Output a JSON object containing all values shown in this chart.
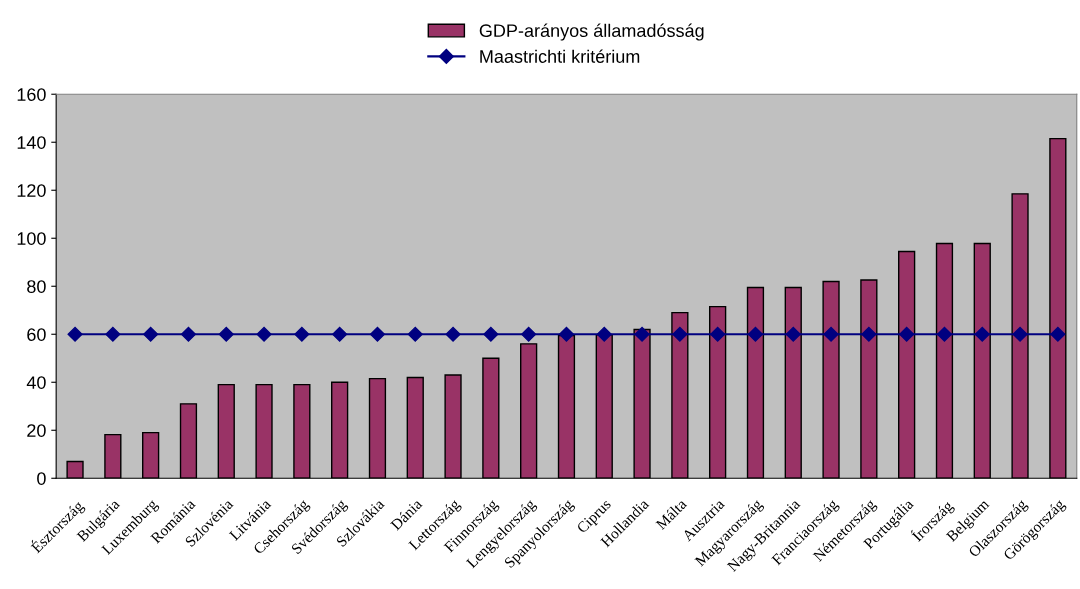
{
  "chart_data": {
    "type": "bar",
    "categories": [
      "Észtország",
      "Bulgária",
      "Luxemburg",
      "Románia",
      "Szlovénia",
      "Litvánia",
      "Csehország",
      "Svédország",
      "Szlovákia",
      "Dánia",
      "Lettország",
      "Finnország",
      "Lengyelország",
      "Spanyolország",
      "Ciprus",
      "Hollandia",
      "Málta",
      "Ausztria",
      "Magyarország",
      "Nagy-Britannia",
      "Franciaország",
      "Németország",
      "Portugália",
      "Írország",
      "Belgium",
      "Olaszország",
      "Görögország"
    ],
    "series": [
      {
        "name": "GDP-arányos államadósság",
        "color": "#993366",
        "values": [
          7,
          18.2,
          19,
          31,
          39,
          39,
          39,
          40,
          41.5,
          42,
          43,
          50,
          56,
          59.5,
          59.8,
          62,
          69,
          71.5,
          79.5,
          79.5,
          82,
          82.6,
          94.5,
          97.8,
          97.8,
          118.5,
          141.5
        ]
      },
      {
        "name": "Maastrichti kritérium",
        "type": "line",
        "color": "#000080",
        "marker": "diamond",
        "values": [
          60,
          60,
          60,
          60,
          60,
          60,
          60,
          60,
          60,
          60,
          60,
          60,
          60,
          60,
          60,
          60,
          60,
          60,
          60,
          60,
          60,
          60,
          60,
          60,
          60,
          60,
          60
        ]
      }
    ],
    "ylim": [
      0,
      160
    ],
    "yticks": [
      0,
      20,
      40,
      60,
      80,
      100,
      120,
      140,
      160
    ],
    "grid": false,
    "legend": "top"
  }
}
